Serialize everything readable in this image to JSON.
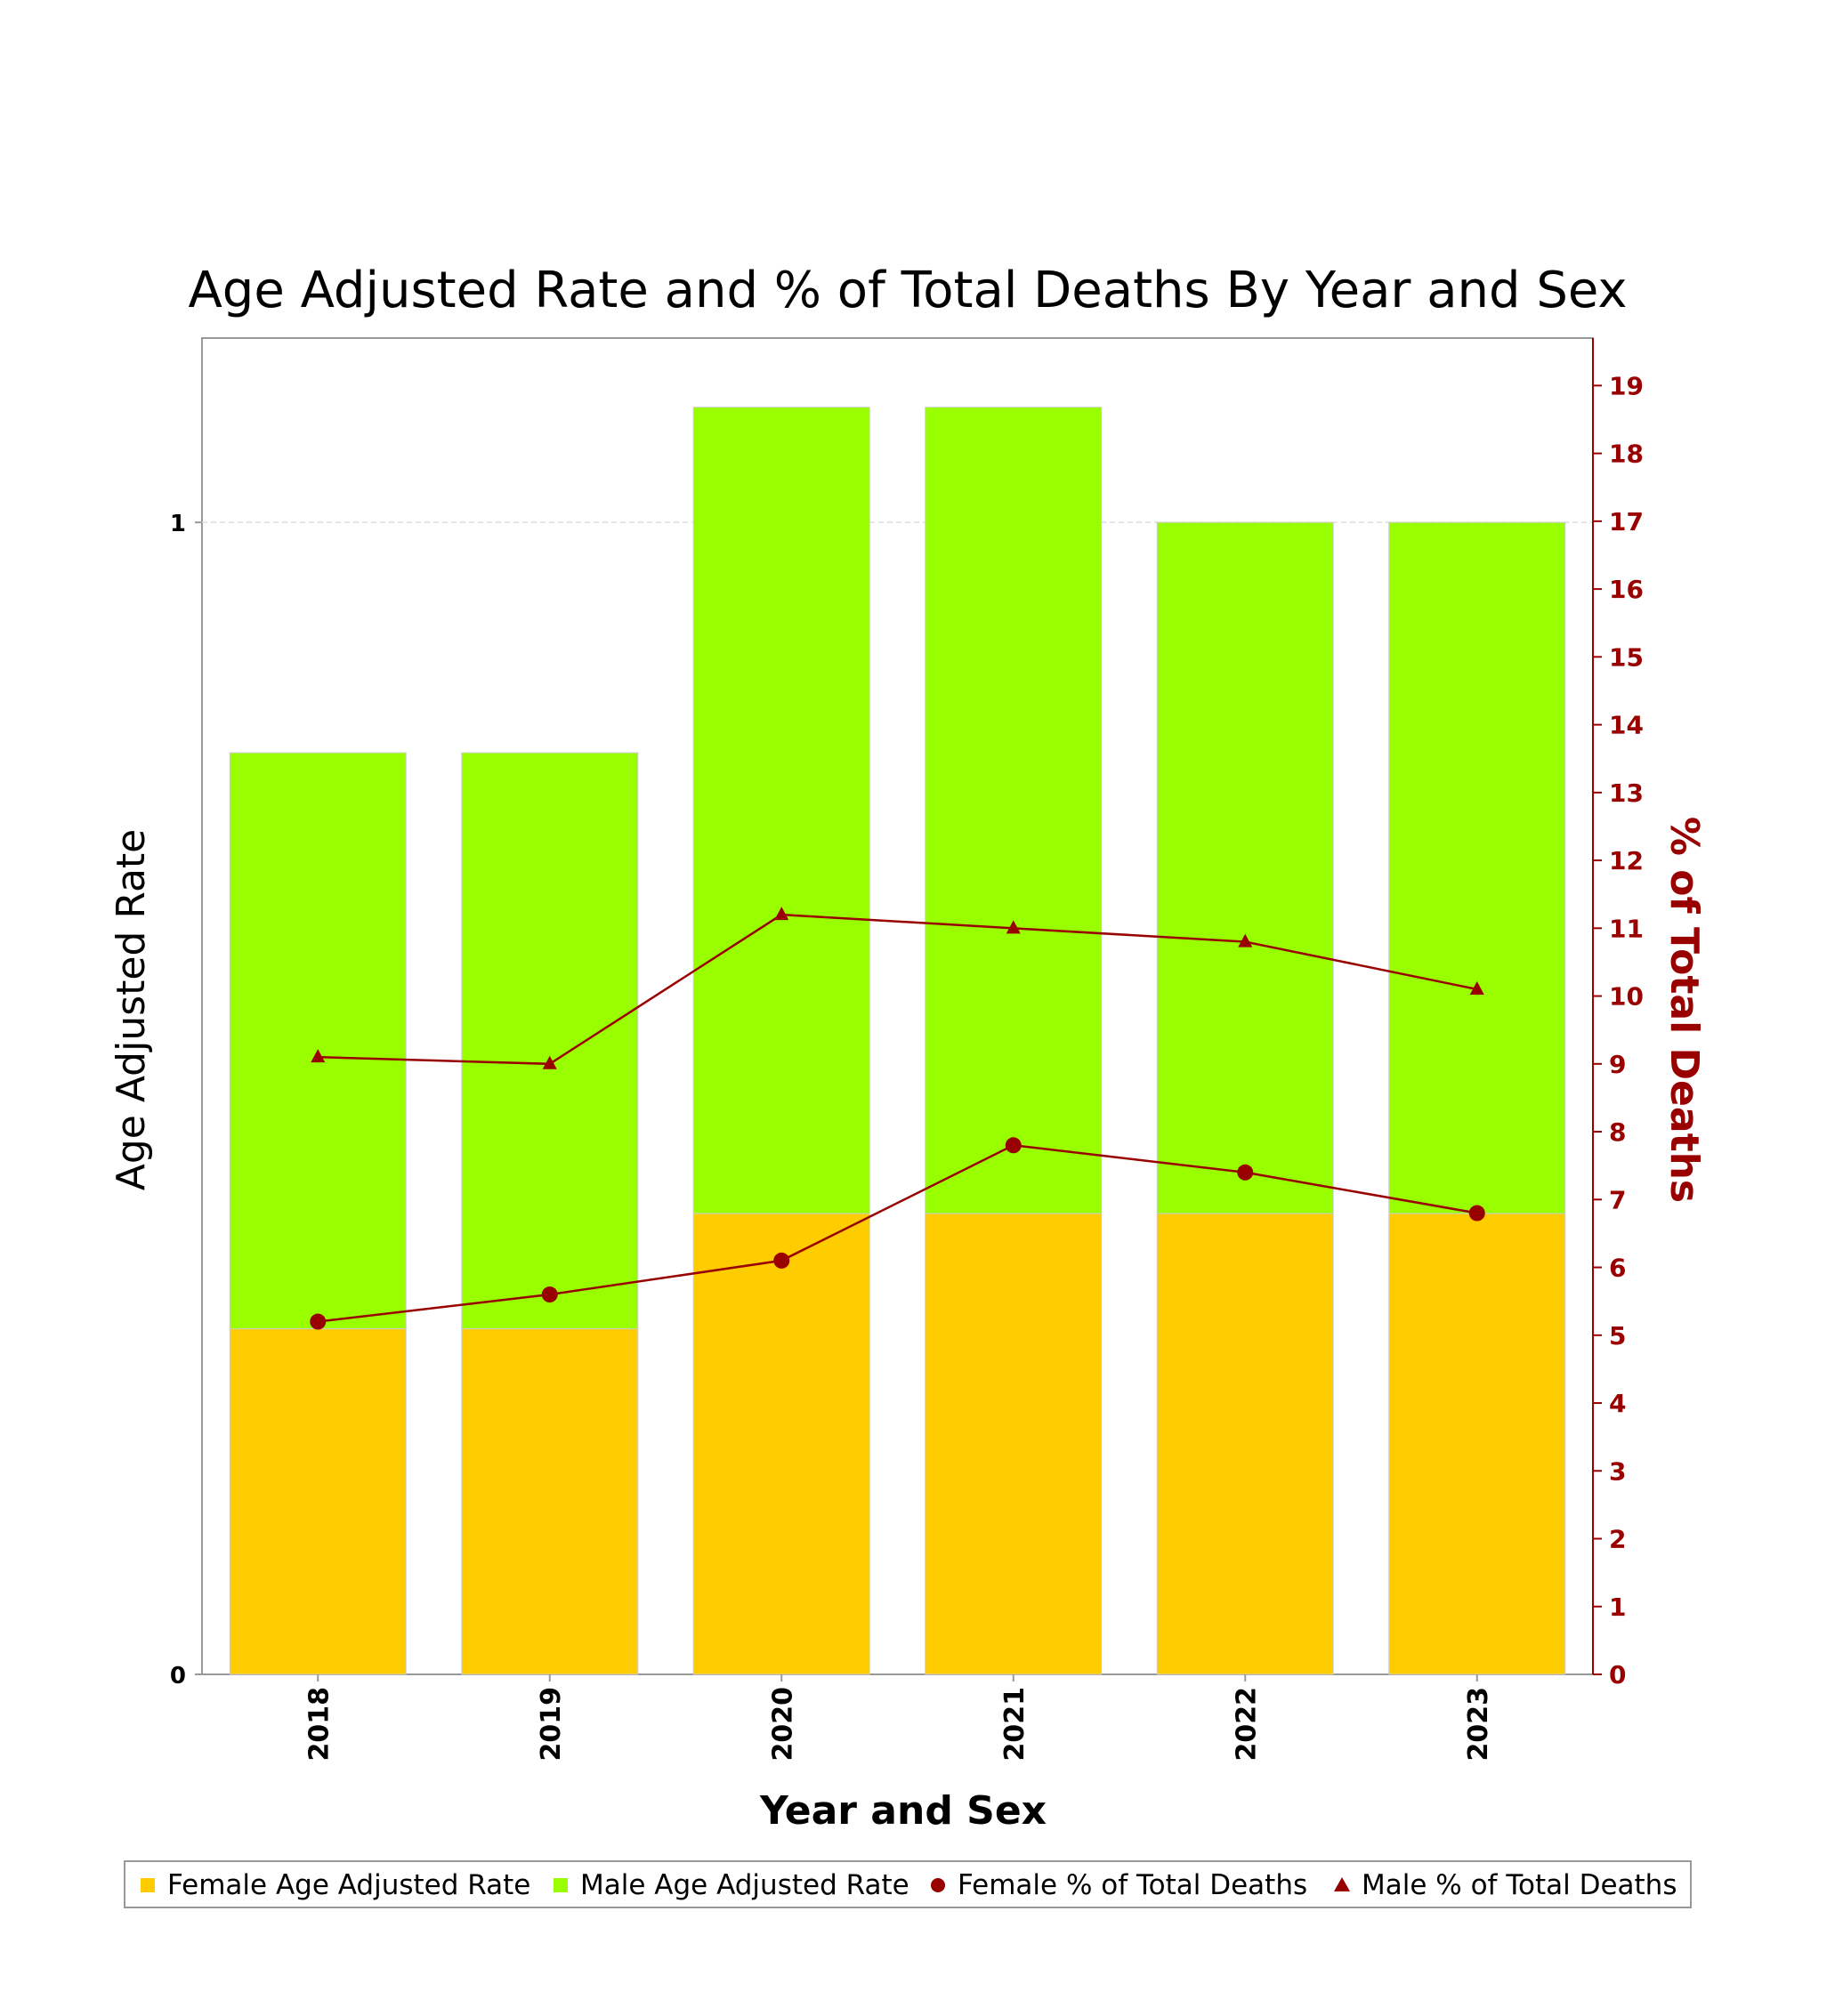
{
  "chart_data": {
    "type": "bar",
    "title": "Age Adjusted Rate and % of Total Deaths By Year and Sex",
    "xlabel": "Year and Sex",
    "ylabel": "Age Adjusted Rate",
    "y2label": "% of Total Deaths",
    "categories": [
      "2018",
      "2019",
      "2020",
      "2021",
      "2022",
      "2023"
    ],
    "ylim": [
      0,
      1.16
    ],
    "y2lim": [
      0,
      19.7
    ],
    "yticks": [
      "0",
      "1"
    ],
    "y2ticks": [
      "0",
      "1",
      "2",
      "3",
      "4",
      "5",
      "6",
      "7",
      "8",
      "9",
      "10",
      "11",
      "12",
      "13",
      "14",
      "15",
      "16",
      "17",
      "18",
      "19"
    ],
    "bar_series": [
      {
        "name": "Female Age Adjusted Rate",
        "values": [
          0.3,
          0.3,
          0.4,
          0.4,
          0.4,
          0.4
        ]
      },
      {
        "name": "Male Age Adjusted Rate",
        "values": [
          0.5,
          0.5,
          0.7,
          0.7,
          0.6,
          0.6
        ]
      }
    ],
    "line_series": [
      {
        "name": "Female % of Total Deaths",
        "values": [
          5.2,
          5.6,
          6.1,
          7.8,
          7.4,
          6.8
        ]
      },
      {
        "name": "Male % of Total Deaths",
        "values": [
          9.1,
          9.0,
          11.2,
          11.0,
          10.8,
          10.1
        ]
      }
    ],
    "colors": {
      "female_bar": "#FFCC00",
      "male_bar": "#99FF00",
      "line": "#990000",
      "right_axis": "#990000"
    },
    "grid": true,
    "legend_position": "bottom"
  }
}
